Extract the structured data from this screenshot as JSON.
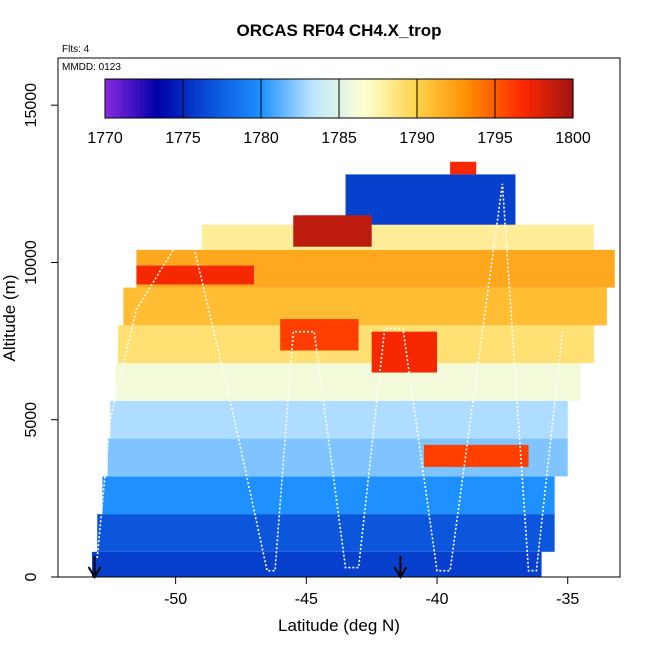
{
  "chart_data": {
    "type": "heatmap",
    "title": "ORCAS RF04 CH4.X_trop",
    "subtitle_flights": "Flts: 4",
    "subtitle_date": "MMDD: 0123",
    "xlabel": "Latitude (deg N)",
    "ylabel": "Altitude (m)",
    "xlim": [
      -54.5,
      -33.0
    ],
    "ylim": [
      0,
      16500
    ],
    "x_ticks": [
      -50,
      -45,
      -40,
      -35
    ],
    "x_tick_labels": [
      "-50",
      "-45",
      "-40",
      "-35"
    ],
    "y_ticks": [
      0,
      5000,
      10000,
      15000
    ],
    "y_tick_labels": [
      "0",
      "5000",
      "10000",
      "15000"
    ],
    "colorbar": {
      "min": 1770,
      "max": 1800,
      "ticks": [
        1770,
        1775,
        1780,
        1785,
        1790,
        1795,
        1800
      ],
      "tick_labels": [
        "1770",
        "1775",
        "1780",
        "1785",
        "1790",
        "1795",
        "1800"
      ],
      "colors": [
        "#8a2be2",
        "#0000a8",
        "#0a50d8",
        "#1e90ff",
        "#bfe6ff",
        "#ffffd0",
        "#ffd24a",
        "#ff8c00",
        "#ff2a00",
        "#a01414"
      ]
    },
    "altitude_bands": [
      {
        "alt_low": 0,
        "alt_high": 800,
        "lat_start": -53.2,
        "lat_end": -36.0,
        "value": 1776
      },
      {
        "alt_low": 800,
        "alt_high": 2000,
        "lat_start": -53.0,
        "lat_end": -35.5,
        "value": 1777
      },
      {
        "alt_low": 2000,
        "alt_high": 3200,
        "lat_start": -52.8,
        "lat_end": -35.5,
        "value": 1780
      },
      {
        "alt_low": 3200,
        "alt_high": 4400,
        "lat_start": -52.6,
        "lat_end": -35.0,
        "value": 1782
      },
      {
        "alt_low": 4400,
        "alt_high": 5600,
        "lat_start": -52.5,
        "lat_end": -35.0,
        "value": 1783
      },
      {
        "alt_low": 5600,
        "alt_high": 6800,
        "lat_start": -52.3,
        "lat_end": -34.5,
        "value": 1786
      },
      {
        "alt_low": 6800,
        "alt_high": 8000,
        "lat_start": -52.2,
        "lat_end": -34.0,
        "value": 1789
      },
      {
        "alt_low": 8000,
        "alt_high": 9200,
        "lat_start": -52.0,
        "lat_end": -33.5,
        "value": 1791
      },
      {
        "alt_low": 9200,
        "alt_high": 10400,
        "lat_start": -51.5,
        "lat_end": -33.2,
        "value": 1792
      },
      {
        "alt_low": 10400,
        "alt_high": 11200,
        "lat_start": -49.0,
        "lat_end": -34.0,
        "value": 1788
      },
      {
        "alt_low": 11200,
        "alt_high": 12800,
        "lat_start": -43.5,
        "lat_end": -37.0,
        "value": 1776
      }
    ],
    "features": [
      {
        "lat_start": -45.5,
        "lat_end": -42.5,
        "alt_low": 10500,
        "alt_high": 11500,
        "value": 1799
      },
      {
        "lat_start": -46.0,
        "lat_end": -43.0,
        "alt_low": 7200,
        "alt_high": 8200,
        "value": 1796
      },
      {
        "lat_start": -42.5,
        "lat_end": -40.0,
        "alt_low": 6500,
        "alt_high": 7800,
        "value": 1797
      },
      {
        "lat_start": -40.5,
        "lat_end": -36.5,
        "alt_low": 3500,
        "alt_high": 4200,
        "value": 1796
      },
      {
        "lat_start": -51.5,
        "lat_end": -47.0,
        "alt_low": 9300,
        "alt_high": 9900,
        "value": 1797
      },
      {
        "lat_start": -39.5,
        "lat_end": -38.5,
        "alt_low": 12800,
        "alt_high": 13200,
        "value": 1797
      }
    ],
    "flight_track": {
      "lat": [
        -53.0,
        -52.5,
        -51.5,
        -49.5,
        -47.8,
        -46.5,
        -46.2,
        -45.5,
        -44.7,
        -43.5,
        -43.0,
        -42.0,
        -41.3,
        -40.0,
        -39.5,
        -37.5,
        -36.5,
        -36.2,
        -35.2
      ],
      "alt": [
        600,
        5000,
        8500,
        11200,
        5200,
        200,
        200,
        7800,
        7800,
        300,
        300,
        7900,
        7900,
        200,
        200,
        12500,
        200,
        200,
        7800
      ]
    },
    "markers": [
      {
        "type": "down-arrow",
        "lat": -53.1
      },
      {
        "type": "down-arrow",
        "lat": -41.4
      }
    ]
  }
}
